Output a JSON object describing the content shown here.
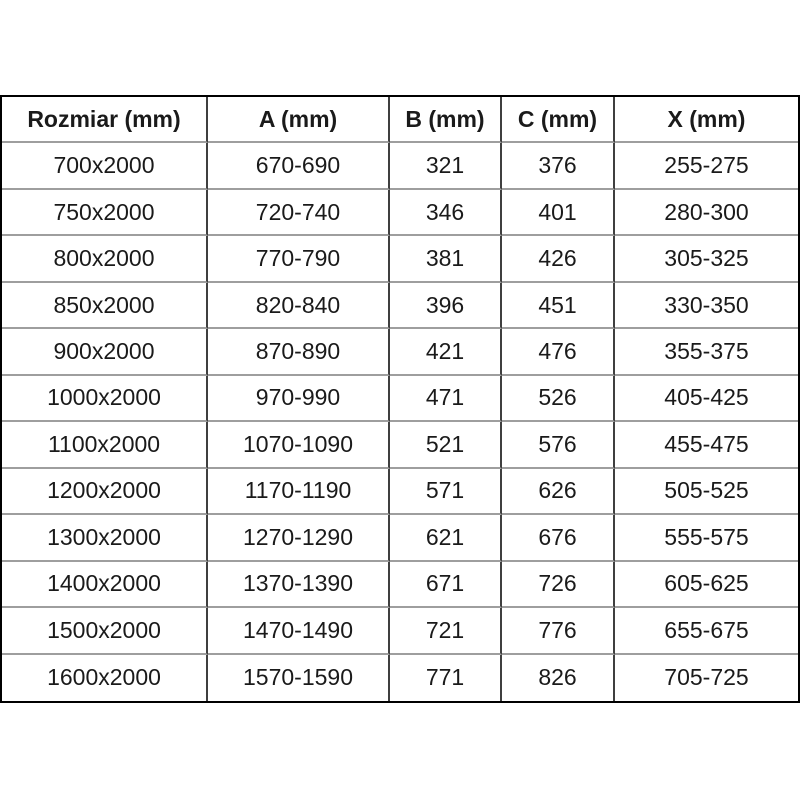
{
  "page": {
    "background": "#ffffff"
  },
  "table": {
    "columns": [
      "Rozmiar (mm)",
      "A (mm)",
      "B (mm)",
      "C (mm)",
      "X (mm)"
    ],
    "rows": [
      [
        "700x2000",
        "670-690",
        "321",
        "376",
        "255-275"
      ],
      [
        "750x2000",
        "720-740",
        "346",
        "401",
        "280-300"
      ],
      [
        "800x2000",
        "770-790",
        "381",
        "426",
        "305-325"
      ],
      [
        "850x2000",
        "820-840",
        "396",
        "451",
        "330-350"
      ],
      [
        "900x2000",
        "870-890",
        "421",
        "476",
        "355-375"
      ],
      [
        "1000x2000",
        "970-990",
        "471",
        "526",
        "405-425"
      ],
      [
        "1100x2000",
        "1070-1090",
        "521",
        "576",
        "455-475"
      ],
      [
        "1200x2000",
        "1170-1190",
        "571",
        "626",
        "505-525"
      ],
      [
        "1300x2000",
        "1270-1290",
        "621",
        "676",
        "555-575"
      ],
      [
        "1400x2000",
        "1370-1390",
        "671",
        "726",
        "605-625"
      ],
      [
        "1500x2000",
        "1470-1490",
        "721",
        "776",
        "655-675"
      ],
      [
        "1600x2000",
        "1570-1590",
        "771",
        "826",
        "705-725"
      ]
    ],
    "colors": {
      "outer_border": "#000000",
      "column_divider": "#3f3f3f",
      "row_divider": "#9e9e9e",
      "text": "#1a1a1a"
    }
  }
}
